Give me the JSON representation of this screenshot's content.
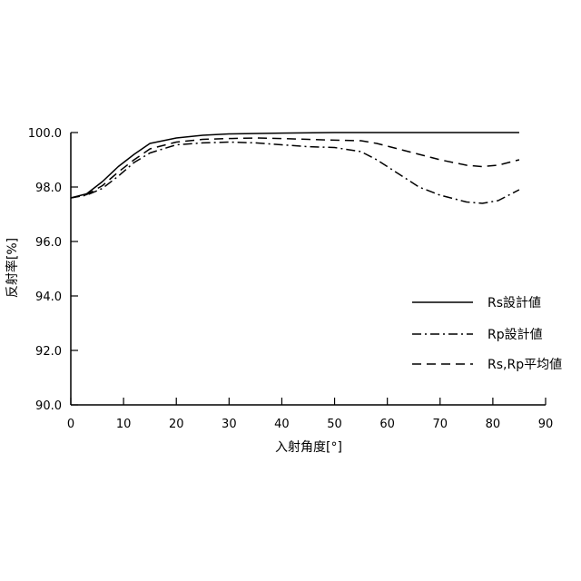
{
  "chart_data": {
    "type": "line",
    "xlabel": "入射角度[°]",
    "ylabel": "反射率[%]",
    "xlim": [
      0,
      90
    ],
    "ylim": [
      90,
      100
    ],
    "x_ticks": [
      "0",
      "10",
      "20",
      "30",
      "40",
      "50",
      "60",
      "70",
      "80",
      "90"
    ],
    "y_ticks": [
      "90.0",
      "92.0",
      "94.0",
      "96.0",
      "98.0",
      "100.0"
    ],
    "grid": false,
    "legend_position": "inside-right",
    "series": [
      {
        "name": "Rs設計値",
        "style": "solid",
        "points": [
          [
            0,
            97.6
          ],
          [
            3,
            97.75
          ],
          [
            6,
            98.2
          ],
          [
            9,
            98.75
          ],
          [
            12,
            99.2
          ],
          [
            15,
            99.6
          ],
          [
            20,
            99.8
          ],
          [
            25,
            99.9
          ],
          [
            30,
            99.95
          ],
          [
            40,
            99.98
          ],
          [
            50,
            100.0
          ],
          [
            60,
            100.0
          ],
          [
            70,
            100.0
          ],
          [
            80,
            100.0
          ],
          [
            85,
            100.0
          ]
        ]
      },
      {
        "name": "Rp設計値",
        "style": "dashdot",
        "points": [
          [
            0,
            97.6
          ],
          [
            3,
            97.7
          ],
          [
            6,
            97.95
          ],
          [
            9,
            98.4
          ],
          [
            12,
            98.9
          ],
          [
            15,
            99.25
          ],
          [
            20,
            99.55
          ],
          [
            25,
            99.62
          ],
          [
            30,
            99.65
          ],
          [
            35,
            99.62
          ],
          [
            40,
            99.55
          ],
          [
            45,
            99.48
          ],
          [
            50,
            99.45
          ],
          [
            55,
            99.3
          ],
          [
            58,
            99.0
          ],
          [
            62,
            98.5
          ],
          [
            66,
            98.0
          ],
          [
            70,
            97.7
          ],
          [
            75,
            97.45
          ],
          [
            78,
            97.4
          ],
          [
            81,
            97.5
          ],
          [
            85,
            97.9
          ]
        ]
      },
      {
        "name": "Rs,Rp平均値",
        "style": "dashed",
        "points": [
          [
            0,
            97.6
          ],
          [
            3,
            97.72
          ],
          [
            6,
            98.05
          ],
          [
            9,
            98.55
          ],
          [
            12,
            99.0
          ],
          [
            15,
            99.4
          ],
          [
            20,
            99.65
          ],
          [
            25,
            99.75
          ],
          [
            30,
            99.78
          ],
          [
            35,
            99.8
          ],
          [
            40,
            99.78
          ],
          [
            45,
            99.75
          ],
          [
            50,
            99.72
          ],
          [
            55,
            99.7
          ],
          [
            58,
            99.6
          ],
          [
            62,
            99.4
          ],
          [
            66,
            99.2
          ],
          [
            70,
            99.0
          ],
          [
            75,
            98.8
          ],
          [
            78,
            98.75
          ],
          [
            81,
            98.8
          ],
          [
            85,
            99.0
          ]
        ]
      }
    ]
  }
}
